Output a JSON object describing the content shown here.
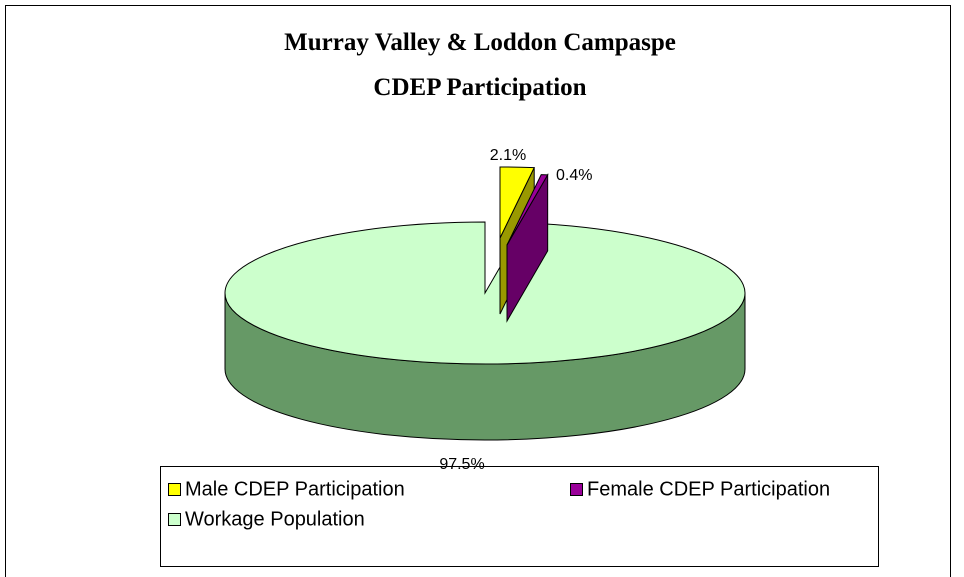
{
  "chart_data": {
    "type": "pie",
    "title": [
      "Murray Valley & Loddon Campaspe",
      "CDEP Participation"
    ],
    "categories": [
      "Male CDEP Participation",
      "Female CDEP Participation",
      "Workage Population"
    ],
    "values": [
      2.1,
      0.4,
      97.5
    ],
    "value_labels": [
      "2.1%",
      "0.4%",
      "97.5%"
    ],
    "colors": [
      "#ffff00",
      "#990099",
      "#ccffcc"
    ],
    "side_colors": [
      "#999900",
      "#660066",
      "#669966"
    ],
    "legend": "bottom"
  }
}
